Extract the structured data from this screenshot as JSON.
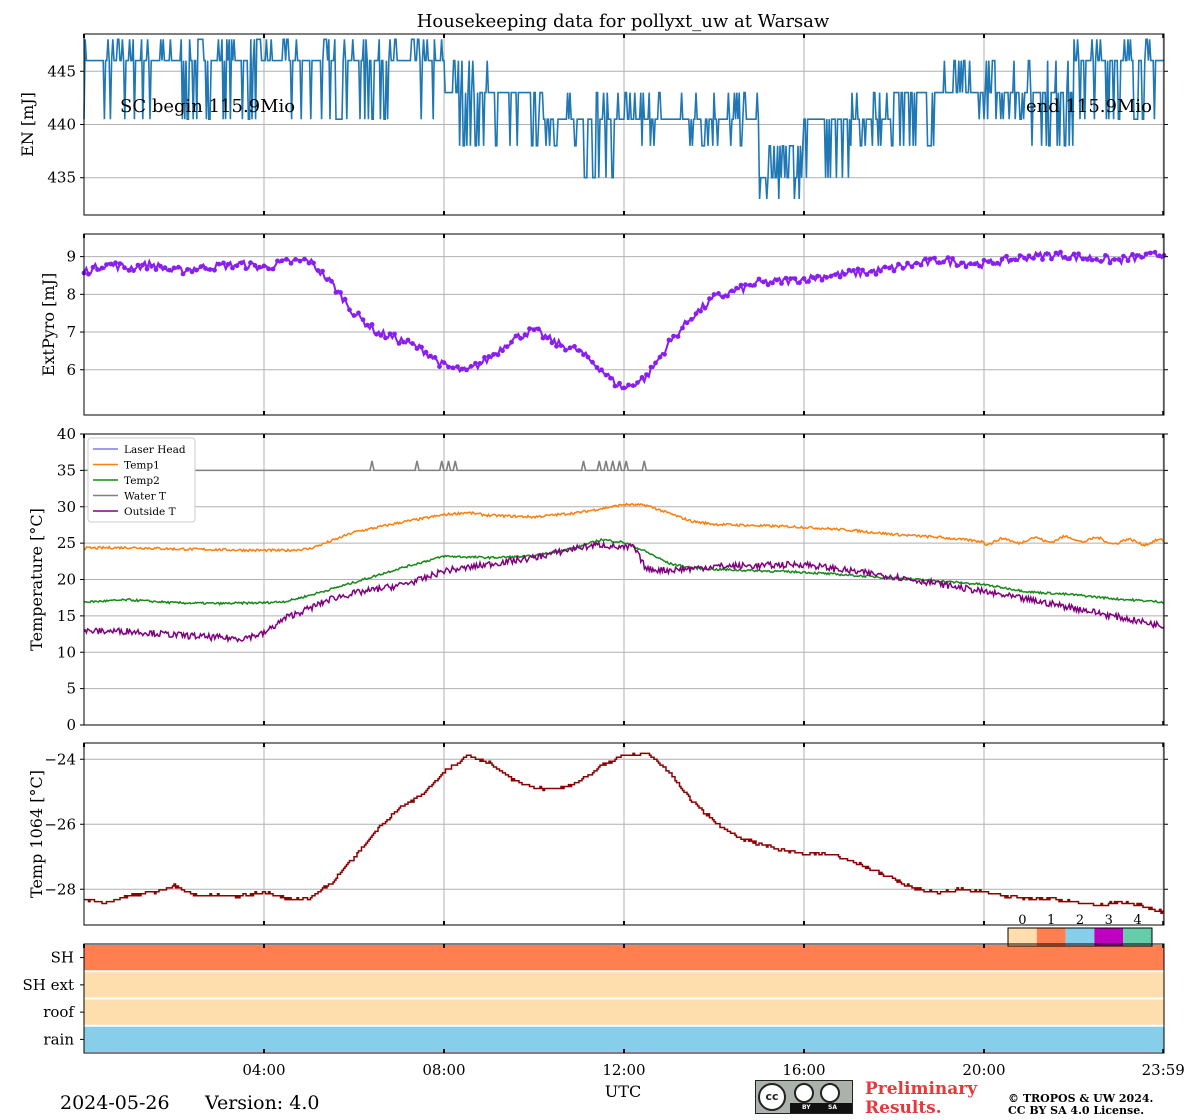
{
  "chart_data": {
    "title": "Housekeeping data for pollyxt_uw at Warsaw",
    "xlabel": "UTC",
    "xlim": [
      0,
      24
    ],
    "xticks": [
      {
        "h": 4,
        "label": "04:00"
      },
      {
        "h": 8,
        "label": "08:00"
      },
      {
        "h": 12,
        "label": "12:00"
      },
      {
        "h": 16,
        "label": "16:00"
      },
      {
        "h": 20,
        "label": "20:00"
      },
      {
        "h": 23.983,
        "label": "23:59"
      }
    ],
    "panels": [
      {
        "id": "energy",
        "type": "line",
        "ylabel": "EN [mJ]",
        "ylim": [
          431.5,
          448.5
        ],
        "yticks": [
          435,
          440,
          445
        ],
        "ytick_labels": [
          "435",
          "440",
          "445"
        ],
        "annotations": {
          "left": "SC begin 115.9Mio",
          "right": "end 115.9Mio"
        },
        "series": [
          {
            "name": "EN",
            "color": "#1f77b4",
            "levels": [
              446,
              446,
              446,
              446,
              446,
              446,
              446,
              446,
              443,
              443,
              440.5,
              440.5,
              440.5,
              440.5,
              440.5,
              436.5,
              440.5,
              440.5,
              443,
              443,
              443,
              443,
              446,
              446,
              446
            ],
            "range": [
              [
                441,
                448
              ],
              [
                441,
                448
              ],
              [
                441,
                448
              ],
              [
                441,
                448
              ],
              [
                441,
                448
              ],
              [
                441,
                448
              ],
              [
                441,
                448
              ],
              [
                441,
                448
              ],
              [
                438,
                446
              ],
              [
                438,
                443
              ],
              [
                438,
                443
              ],
              [
                435,
                443
              ],
              [
                438,
                443
              ],
              [
                438,
                443
              ],
              [
                438,
                443
              ],
              [
                433,
                438
              ],
              [
                435,
                441
              ],
              [
                438,
                443
              ],
              [
                438,
                443
              ],
              [
                441,
                446
              ],
              [
                441,
                446
              ],
              [
                438,
                446
              ],
              [
                441,
                448
              ],
              [
                441,
                448
              ],
              [
                441,
                448
              ]
            ]
          }
        ]
      },
      {
        "id": "extpyro",
        "type": "scatter-line",
        "ylabel": "ExtPyro [mJ]",
        "ylim": [
          4.8,
          9.6
        ],
        "yticks": [
          6,
          7,
          8,
          9
        ],
        "ytick_labels": [
          "6",
          "7",
          "8",
          "9"
        ],
        "series": [
          {
            "name": "ExtPyro",
            "color": "#8a1ef0",
            "x": [
              0,
              0.5,
              1,
              1.5,
              2,
              2.5,
              3,
              3.5,
              4,
              4.5,
              5,
              5.5,
              6,
              6.5,
              7,
              7.5,
              8,
              8.5,
              9,
              9.5,
              10,
              10.5,
              11,
              11.5,
              11.8,
              12,
              12.5,
              13,
              13.5,
              14,
              14.5,
              15,
              15.5,
              16,
              16.5,
              17,
              17.5,
              18,
              18.5,
              19,
              19.5,
              20,
              20.5,
              21,
              21.5,
              22,
              22.5,
              23,
              23.5,
              24
            ],
            "y": [
              8.6,
              8.8,
              8.7,
              8.8,
              8.6,
              8.7,
              8.75,
              8.8,
              8.7,
              8.85,
              8.9,
              8.3,
              7.5,
              7.0,
              6.8,
              6.55,
              6.1,
              5.95,
              6.3,
              6.8,
              7.05,
              6.7,
              6.5,
              6.0,
              5.65,
              5.5,
              5.8,
              6.7,
              7.4,
              7.9,
              8.1,
              8.3,
              8.35,
              8.4,
              8.5,
              8.55,
              8.6,
              8.7,
              8.8,
              8.9,
              8.85,
              8.8,
              8.9,
              9.0,
              9.05,
              9.0,
              8.95,
              8.9,
              9.0,
              9.05
            ]
          }
        ]
      },
      {
        "id": "temperature",
        "type": "line",
        "ylabel": "Temperature [$^\\circ C$]",
        "ylim": [
          0,
          40
        ],
        "yticks": [
          0,
          5,
          10,
          15,
          20,
          25,
          30,
          35,
          40
        ],
        "ytick_labels": [
          "0",
          "5",
          "10",
          "15",
          "20",
          "25",
          "30",
          "35",
          "40"
        ],
        "legend": {
          "placement": "top-left"
        },
        "series": [
          {
            "name": "Laser Head",
            "color": "#7b7bef",
            "x": [],
            "y": []
          },
          {
            "name": "Temp1",
            "color": "#ff7f0e",
            "x": [
              0,
              1,
              2,
              3,
              4,
              4.5,
              5,
              5.5,
              6,
              7,
              8,
              8.5,
              9,
              10,
              11,
              12,
              12.5,
              13,
              13.5,
              14,
              15,
              16,
              17,
              18,
              19,
              20,
              21,
              22,
              23,
              24
            ],
            "y": [
              24.3,
              24.4,
              24.2,
              24.1,
              24.0,
              24.0,
              24.2,
              25.3,
              26.5,
              27.8,
              28.9,
              29.2,
              28.8,
              28.6,
              29.2,
              30.3,
              30.2,
              29.1,
              28.0,
              27.6,
              27.4,
              27.2,
              26.8,
              26.2,
              25.8,
              25.2,
              25.4,
              25.6,
              25.2,
              25.1
            ]
          },
          {
            "name": "Temp2",
            "color": "#178a17",
            "x": [
              0,
              1,
              2,
              3,
              4,
              4.5,
              5,
              6,
              7,
              8,
              9,
              10,
              11,
              11.5,
              12,
              12.5,
              13,
              13.5,
              14,
              15,
              16,
              17,
              18,
              19,
              20,
              20.5,
              21,
              22,
              23,
              24
            ],
            "y": [
              16.9,
              17.2,
              16.8,
              16.7,
              16.8,
              17.0,
              17.8,
              19.6,
              21.5,
              23.2,
              23.0,
              23.2,
              24.5,
              25.5,
              25.1,
              23.8,
              22.2,
              21.6,
              21.4,
              21.2,
              21.0,
              20.6,
              20.2,
              19.8,
              19.3,
              18.8,
              18.3,
              17.9,
              17.3,
              16.9
            ]
          },
          {
            "name": "Water T",
            "color": "#808080",
            "x": [
              0,
              24
            ],
            "y": [
              35,
              35
            ],
            "spikes_h": [
              6.4,
              7.4,
              7.95,
              8.1,
              8.25,
              11.1,
              11.45,
              11.6,
              11.75,
              11.9,
              12.05,
              12.45
            ]
          },
          {
            "name": "Outside T",
            "color": "#800080",
            "x": [
              0,
              1,
              2,
              3,
              3.5,
              4,
              4.5,
              5,
              5.5,
              6,
              7,
              7.5,
              8,
              8.5,
              9,
              10,
              11,
              11.5,
              12,
              12.2,
              12.5,
              13,
              13.5,
              14,
              15,
              16,
              17,
              18,
              19,
              20,
              21,
              22,
              23,
              24
            ],
            "y": [
              12.9,
              12.9,
              12.4,
              12.0,
              11.9,
              12.6,
              14.8,
              16.0,
              17.4,
              18.1,
              19.2,
              20.0,
              21.2,
              21.6,
              22.1,
              23.0,
              24.4,
              24.8,
              24.3,
              24.6,
              21.4,
              21.3,
              21.5,
              21.8,
              21.9,
              22.1,
              21.2,
              20.4,
              19.4,
              18.3,
              17.2,
              16.1,
              14.8,
              13.6
            ]
          }
        ]
      },
      {
        "id": "temp1064",
        "type": "line",
        "ylabel": "Temp 1064 [$^\\circ C$]",
        "ylim": [
          -29.1,
          -23.5
        ],
        "yticks": [
          -28,
          -26,
          -24
        ],
        "ytick_labels": [
          "−28",
          "−26",
          "−24"
        ],
        "series": [
          {
            "name": "Temp 1064",
            "color": "#8b0000",
            "x": [
              0,
              0.5,
              1,
              1.5,
              2,
              2.5,
              3,
              3.5,
              4,
              4.5,
              5,
              5.5,
              6,
              6.5,
              7,
              7.5,
              8,
              8.5,
              9,
              9.5,
              10,
              10.5,
              11,
              11.5,
              12,
              12.5,
              13,
              13.5,
              14,
              14.5,
              15,
              15.5,
              16,
              16.5,
              17,
              17.5,
              18,
              18.5,
              19,
              19.5,
              20,
              20.5,
              21,
              21.5,
              22,
              22.5,
              23,
              23.5,
              24
            ],
            "y": [
              -28.3,
              -28.4,
              -28.2,
              -28.1,
              -27.9,
              -28.2,
              -28.2,
              -28.2,
              -28.1,
              -28.3,
              -28.3,
              -27.8,
              -27.0,
              -26.2,
              -25.5,
              -25.1,
              -24.4,
              -23.9,
              -24.1,
              -24.6,
              -24.9,
              -24.9,
              -24.7,
              -24.2,
              -23.9,
              -23.8,
              -24.4,
              -25.3,
              -25.9,
              -26.4,
              -26.6,
              -26.8,
              -26.9,
              -26.9,
              -27.1,
              -27.4,
              -27.7,
              -28.0,
              -28.1,
              -28.0,
              -28.1,
              -28.2,
              -28.3,
              -28.3,
              -28.4,
              -28.5,
              -28.4,
              -28.5,
              -28.7
            ]
          }
        ]
      },
      {
        "id": "status",
        "type": "heatmap",
        "rows": [
          "SH",
          "SH ext",
          "roof",
          "rain"
        ],
        "row_values": [
          1,
          0,
          0,
          2
        ],
        "colorbar_labels": [
          "0",
          "1",
          "2",
          "3",
          "4"
        ],
        "colorbar_colors": [
          "#ffdead",
          "#ff7f50",
          "#87ceeb",
          "#c000c0",
          "#66cdaa"
        ]
      }
    ]
  },
  "footer": {
    "date": "2024-05-26",
    "version": "Version: 4.0",
    "preliminary_line1": "Preliminary",
    "preliminary_line2": "Results.",
    "copyright_line1": "© TROPOS & UW 2024.",
    "copyright_line2": "CC BY SA 4.0 License.",
    "license_icon": "cc-by-sa-badge",
    "license_badge_by": "BY",
    "license_badge_sa": "SA",
    "license_badge_cc": "cc"
  }
}
